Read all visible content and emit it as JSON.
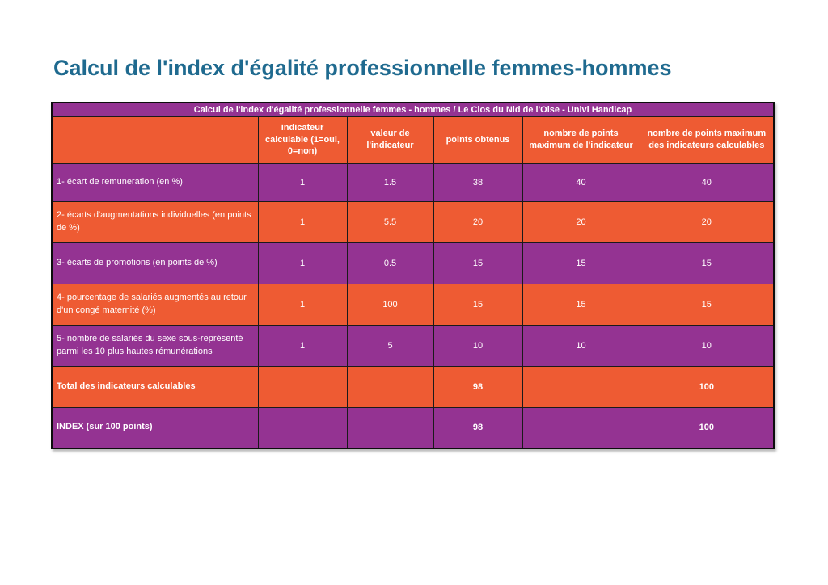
{
  "page_title": "Calcul de l'index d'égalité professionnelle femmes-hommes",
  "colors": {
    "purple": "#943392",
    "orange": "#EE5B33",
    "title_blue": "#1F6A8F",
    "table_text": "#FFFFFF"
  },
  "table": {
    "caption": "Calcul de l'index d'égalité professionnelle femmes - hommes / Le Clos du Nid de l'Oise - Univi Handicap",
    "column_headers": [
      "",
      "indicateur calculable (1=oui, 0=non)",
      "valeur de l'indicateur",
      "points obtenus",
      "nombre de points maximum de l'indicateur",
      "nombre de points maximum des indicateurs calculables"
    ],
    "rows": [
      {
        "label": "1- écart de remuneration (en %)",
        "values": [
          "1",
          "1.5",
          "38",
          "40",
          "40"
        ],
        "emphasis": false
      },
      {
        "label": "2- écarts d'augmentations individuelles (en points de %)",
        "values": [
          "1",
          "5.5",
          "20",
          "20",
          "20"
        ],
        "emphasis": false
      },
      {
        "label": "3- écarts de promotions (en points de %)",
        "values": [
          "1",
          "0.5",
          "15",
          "15",
          "15"
        ],
        "emphasis": false
      },
      {
        "label": "4- pourcentage de salariés augmentés au retour d'un congé maternité (%)",
        "values": [
          "1",
          "100",
          "15",
          "15",
          "15"
        ],
        "emphasis": false
      },
      {
        "label": "5- nombre de salariés du sexe sous-représenté parmi les 10 plus hautes rémunérations",
        "values": [
          "1",
          "5",
          "10",
          "10",
          "10"
        ],
        "emphasis": false
      },
      {
        "label": "Total des indicateurs calculables",
        "values": [
          "",
          "",
          "98",
          "",
          "100"
        ],
        "emphasis": true
      },
      {
        "label": "INDEX (sur 100 points)",
        "values": [
          "",
          "",
          "98",
          "",
          "100"
        ],
        "emphasis": true
      }
    ]
  }
}
